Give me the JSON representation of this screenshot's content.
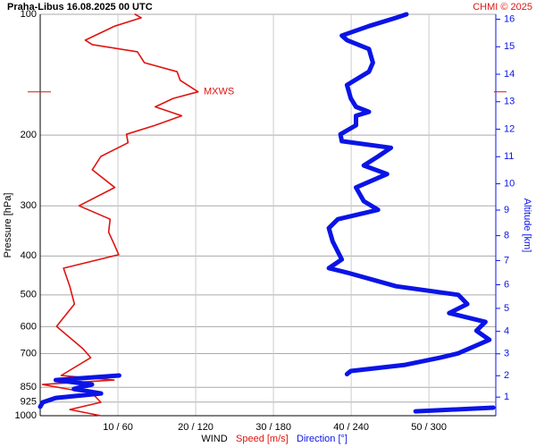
{
  "chart_data": {
    "type": "line",
    "title": "Praha-Libus   16.08.2025 00 UTC",
    "credit": "CHMI © 2025",
    "y_label": "Pressure [hPa]",
    "y2_label": "Altitude [km]",
    "x_label": "WIND",
    "x_label_speed": "Speed [m/s]",
    "x_label_direction": "Direction [°]",
    "y_log": true,
    "grid": true,
    "ylim": [
      1000,
      100
    ],
    "yticks": [
      100,
      200,
      300,
      400,
      500,
      600,
      700,
      850,
      925,
      1000
    ],
    "xlim": [
      0,
      58.6
    ],
    "x2lim": [
      0,
      352
    ],
    "xticks": [
      {
        "value": 10,
        "label": "10 / 60"
      },
      {
        "value": 20,
        "label": "20 / 120"
      },
      {
        "value": 30,
        "label": "30 / 180"
      },
      {
        "value": 40,
        "label": "40 / 240"
      },
      {
        "value": 50,
        "label": "50 / 300"
      }
    ],
    "altitude_ticks": [
      1,
      2,
      3,
      4,
      5,
      6,
      7,
      8,
      9,
      10,
      11,
      12,
      13,
      14,
      15,
      16
    ],
    "mxws": {
      "label": "MXWS",
      "pressure": 156
    },
    "series": [
      {
        "name": "Speed [m/s]",
        "color": "#e0140f",
        "axis": "x",
        "pressure": [
          100,
          102,
          107,
          116,
          119,
          124,
          132,
          139,
          146,
          156,
          162,
          170,
          179,
          189,
          199,
          209,
          226,
          244,
          270,
          300,
          324,
          349,
          377,
          397,
          429,
          476,
          527,
          599,
          681,
          717,
          794,
          815,
          836,
          880,
          926,
          965,
          1000
        ],
        "values": [
          12.2,
          13.0,
          9.6,
          5.8,
          6.7,
          12.5,
          13.4,
          17.6,
          18.0,
          20.3,
          17.1,
          14.8,
          18.2,
          14.8,
          11.1,
          11.3,
          7.8,
          6.7,
          9.6,
          5.0,
          9.0,
          8.8,
          9.6,
          10.1,
          3.0,
          3.8,
          4.4,
          2.1,
          5.5,
          6.5,
          2.7,
          9.5,
          0.3,
          6.7,
          7.8,
          3.8,
          7.8
        ]
      },
      {
        "name": "Direction [°]",
        "color": "#0a14e6",
        "axis": "x2",
        "pressure": [
          100,
          102,
          107,
          113,
          116,
          122,
          132,
          139,
          150,
          162,
          170,
          175,
          179,
          189,
          199,
          207,
          215,
          226,
          238,
          250,
          270,
          292,
          307,
          324,
          341,
          368,
          408,
          429,
          440,
          476,
          500,
          527,
          555,
          584,
          614,
          647,
          699,
          717,
          747,
          774,
          788,
          null,
          794,
          815,
          836,
          858,
          880,
          903,
          926,
          950,
          null,
          955,
          975
        ],
        "values": [
          283,
          275,
          254,
          233,
          237,
          254,
          257,
          254,
          237,
          240,
          244,
          254,
          244,
          244,
          232,
          233,
          271,
          261,
          250,
          268,
          244,
          250,
          261,
          230,
          223,
          226,
          233,
          223,
          237,
          275,
          323,
          330,
          316,
          344,
          337,
          347,
          323,
          309,
          282,
          240,
          237,
          null,
          61,
          12,
          40,
          26,
          47,
          12,
          2,
          0,
          null,
          350,
          290
        ]
      }
    ]
  }
}
